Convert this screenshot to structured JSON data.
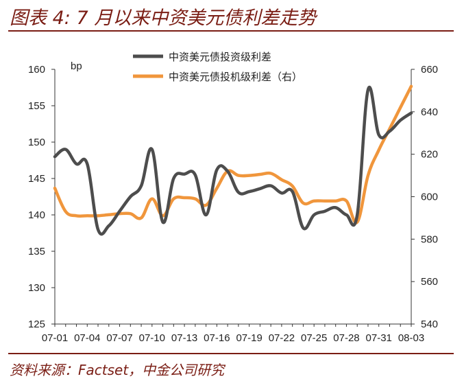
{
  "title": "图表 4: 7 月以来中资美元债利差走势",
  "source": "资料来源：Factset，中金公司研究",
  "chart_data": {
    "type": "line",
    "unit_label": "bp",
    "x_tick_labels": [
      "07-01",
      "07-04",
      "07-07",
      "07-10",
      "07-13",
      "07-16",
      "07-19",
      "07-22",
      "07-25",
      "07-28",
      "07-31",
      "08-03"
    ],
    "y_left": {
      "range": [
        125,
        160
      ],
      "ticks": [
        125,
        130,
        135,
        140,
        145,
        150,
        155,
        160
      ]
    },
    "y_right": {
      "range": [
        540,
        660
      ],
      "ticks": [
        540,
        560,
        580,
        600,
        620,
        640,
        660
      ]
    },
    "legend_placement": "top-center",
    "series": [
      {
        "name": "中资美元债投资级利差",
        "axis": "left",
        "color": "#4d4d4d",
        "x": [
          0,
          1,
          2,
          3,
          4,
          5,
          6,
          7,
          8,
          9,
          10,
          11,
          12,
          13,
          14,
          15,
          16,
          17,
          18,
          19,
          20,
          21,
          22,
          23,
          24,
          25,
          26,
          27,
          28,
          29,
          30,
          31,
          32,
          33
        ],
        "values": [
          148,
          149,
          147,
          147,
          138,
          138.5,
          140.5,
          142.5,
          144,
          149,
          139,
          145,
          145.6,
          145.5,
          140,
          146.2,
          146,
          143.1,
          143.2,
          143.6,
          144,
          143,
          143.2,
          138.2,
          140,
          140.5,
          141,
          140,
          140,
          157.2,
          151,
          151.5,
          153,
          154
        ]
      },
      {
        "name": "中资美元债投机级利差（右）",
        "axis": "right",
        "color": "#f0963c",
        "x": [
          0,
          1,
          2,
          3,
          4,
          5,
          6,
          7,
          8,
          9,
          10,
          11,
          12,
          13,
          14,
          15,
          16,
          17,
          18,
          19,
          20,
          21,
          22,
          23,
          24,
          25,
          26,
          27,
          28,
          29,
          30,
          31,
          32,
          33
        ],
        "values": [
          604,
          593,
          591,
          591,
          591,
          591.5,
          592,
          592,
          590,
          599,
          591,
          599,
          599.5,
          599,
          596,
          604,
          612,
          610,
          610,
          610.5,
          611,
          608,
          605,
          597,
          598,
          598,
          598,
          598,
          588,
          610,
          622,
          632,
          642,
          652
        ]
      }
    ]
  }
}
